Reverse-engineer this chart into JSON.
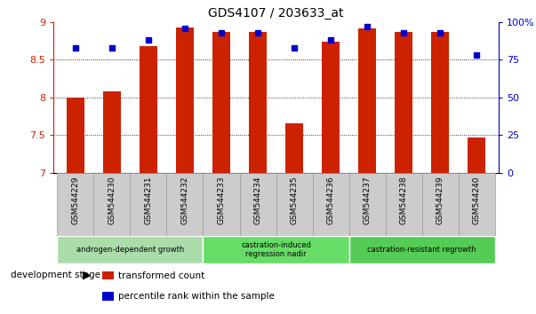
{
  "title": "GDS4107 / 203633_at",
  "categories": [
    "GSM544229",
    "GSM544230",
    "GSM544231",
    "GSM544232",
    "GSM544233",
    "GSM544234",
    "GSM544235",
    "GSM544236",
    "GSM544237",
    "GSM544238",
    "GSM544239",
    "GSM544240"
  ],
  "red_values": [
    8.0,
    8.08,
    8.68,
    8.93,
    8.87,
    8.87,
    7.65,
    8.74,
    8.91,
    8.87,
    8.87,
    7.47
  ],
  "blue_values_pct": [
    83,
    83,
    88,
    96,
    93,
    93,
    83,
    88,
    97,
    93,
    93,
    78
  ],
  "ymin": 7.0,
  "ymax": 9.0,
  "yticks": [
    7.0,
    7.5,
    8.0,
    8.5,
    9.0
  ],
  "right_yticks": [
    0,
    25,
    50,
    75,
    100
  ],
  "right_yticklabels": [
    "0",
    "25",
    "50",
    "75",
    "100%"
  ],
  "bar_color": "#cc2200",
  "dot_color": "#0000cc",
  "groups": [
    {
      "label": "androgen-dependent growth",
      "start": 0,
      "end": 3,
      "color": "#aaddaa"
    },
    {
      "label": "castration-induced\nregression nadir",
      "start": 4,
      "end": 7,
      "color": "#66dd66"
    },
    {
      "label": "castration-resistant regrowth",
      "start": 8,
      "end": 11,
      "color": "#55cc55"
    }
  ],
  "dev_stage_label": "development stage",
  "legend_items": [
    {
      "label": "transformed count",
      "color": "#cc2200"
    },
    {
      "label": "percentile rank within the sample",
      "color": "#0000cc"
    }
  ],
  "bar_width": 0.5,
  "xlim_left": -0.6,
  "xlim_right": 11.6
}
